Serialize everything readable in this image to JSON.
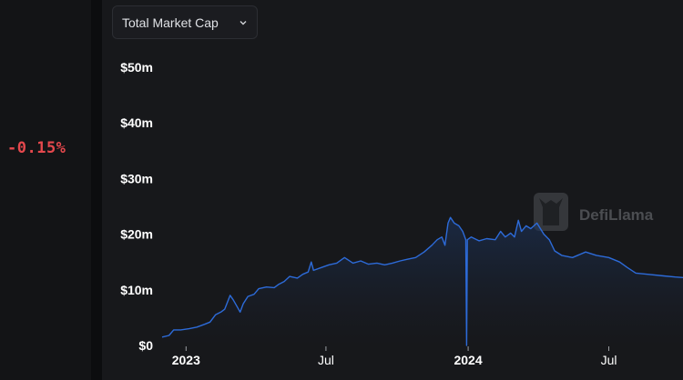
{
  "left": {
    "change": "-0.15%"
  },
  "dropdown": {
    "label": "Total Market Cap",
    "icon": "chevron-down-icon"
  },
  "watermark": {
    "text": "DefiLlama",
    "icon": "llama-logo-icon"
  },
  "colors": {
    "line": "#2d6bd9",
    "negative": "#e5484d",
    "background": "#17181b"
  },
  "chart_data": {
    "type": "area",
    "title": "",
    "xlabel": "",
    "ylabel": "",
    "ylim": [
      0,
      50
    ],
    "y_unit": "m",
    "yticks": [
      "$0",
      "$10m",
      "$20m",
      "$30m",
      "$40m",
      "$50m"
    ],
    "xticks": [
      {
        "label": "2023",
        "date": "2023-01-01",
        "bold": true
      },
      {
        "label": "Jul",
        "date": "2023-07-01",
        "bold": false
      },
      {
        "label": "2024",
        "date": "2024-01-01",
        "bold": true
      },
      {
        "label": "Jul",
        "date": "2024-07-01",
        "bold": false
      }
    ],
    "xlim": [
      "2022-12-01",
      "2024-10-05"
    ],
    "grid": false,
    "series": [
      {
        "values": [
          [
            "2022-12-01",
            1.5
          ],
          [
            "2022-12-10",
            1.8
          ],
          [
            "2022-12-16",
            2.8
          ],
          [
            "2022-12-25",
            2.8
          ],
          [
            "2023-01-05",
            3.0
          ],
          [
            "2023-01-15",
            3.3
          ],
          [
            "2023-01-25",
            3.8
          ],
          [
            "2023-02-01",
            4.2
          ],
          [
            "2023-02-08",
            5.5
          ],
          [
            "2023-02-15",
            6.0
          ],
          [
            "2023-02-20",
            6.5
          ],
          [
            "2023-02-27",
            9.0
          ],
          [
            "2023-03-03",
            8.2
          ],
          [
            "2023-03-08",
            7.0
          ],
          [
            "2023-03-12",
            6.0
          ],
          [
            "2023-03-16",
            7.5
          ],
          [
            "2023-03-22",
            8.8
          ],
          [
            "2023-03-30",
            9.2
          ],
          [
            "2023-04-05",
            10.2
          ],
          [
            "2023-04-15",
            10.5
          ],
          [
            "2023-04-25",
            10.4
          ],
          [
            "2023-05-01",
            11.0
          ],
          [
            "2023-05-08",
            11.5
          ],
          [
            "2023-05-15",
            12.4
          ],
          [
            "2023-05-25",
            12.1
          ],
          [
            "2023-06-01",
            12.8
          ],
          [
            "2023-06-08",
            13.2
          ],
          [
            "2023-06-12",
            15.0
          ],
          [
            "2023-06-15",
            13.5
          ],
          [
            "2023-06-25",
            14.0
          ],
          [
            "2023-07-05",
            14.5
          ],
          [
            "2023-07-15",
            14.8
          ],
          [
            "2023-07-25",
            15.8
          ],
          [
            "2023-08-05",
            14.8
          ],
          [
            "2023-08-15",
            15.2
          ],
          [
            "2023-08-25",
            14.6
          ],
          [
            "2023-09-05",
            14.8
          ],
          [
            "2023-09-15",
            14.5
          ],
          [
            "2023-09-25",
            14.8
          ],
          [
            "2023-10-05",
            15.2
          ],
          [
            "2023-10-15",
            15.5
          ],
          [
            "2023-10-25",
            15.8
          ],
          [
            "2023-11-05",
            16.8
          ],
          [
            "2023-11-15",
            18.0
          ],
          [
            "2023-11-22",
            19.0
          ],
          [
            "2023-11-28",
            19.5
          ],
          [
            "2023-12-02",
            18.0
          ],
          [
            "2023-12-06",
            22.0
          ],
          [
            "2023-12-09",
            23.0
          ],
          [
            "2023-12-14",
            22.0
          ],
          [
            "2023-12-20",
            21.5
          ],
          [
            "2023-12-25",
            20.5
          ],
          [
            "2023-12-29",
            19.0
          ],
          [
            "2023-12-30",
            0.0
          ],
          [
            "2023-12-31",
            19.0
          ],
          [
            "2024-01-05",
            19.5
          ],
          [
            "2024-01-15",
            18.8
          ],
          [
            "2024-01-25",
            19.2
          ],
          [
            "2024-02-05",
            19.0
          ],
          [
            "2024-02-12",
            20.5
          ],
          [
            "2024-02-18",
            19.5
          ],
          [
            "2024-02-25",
            20.2
          ],
          [
            "2024-03-01",
            19.5
          ],
          [
            "2024-03-06",
            22.5
          ],
          [
            "2024-03-10",
            20.5
          ],
          [
            "2024-03-16",
            21.5
          ],
          [
            "2024-03-22",
            21.0
          ],
          [
            "2024-03-30",
            22.0
          ],
          [
            "2024-04-08",
            20.0
          ],
          [
            "2024-04-15",
            19.0
          ],
          [
            "2024-04-22",
            17.0
          ],
          [
            "2024-05-01",
            16.2
          ],
          [
            "2024-05-15",
            15.8
          ],
          [
            "2024-06-01",
            16.8
          ],
          [
            "2024-06-15",
            16.2
          ],
          [
            "2024-07-01",
            15.8
          ],
          [
            "2024-07-15",
            15.0
          ],
          [
            "2024-07-25",
            14.0
          ],
          [
            "2024-08-05",
            13.0
          ],
          [
            "2024-08-20",
            12.8
          ],
          [
            "2024-09-10",
            12.5
          ],
          [
            "2024-09-25",
            12.3
          ],
          [
            "2024-10-05",
            12.2
          ]
        ]
      }
    ]
  }
}
